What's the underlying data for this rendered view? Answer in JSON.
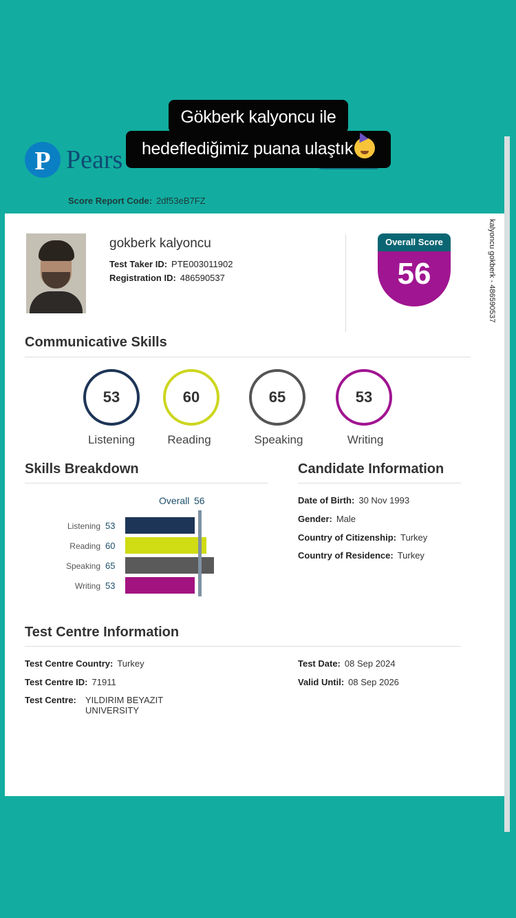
{
  "story": {
    "caption_line1": "Gökberk kalyoncu ile",
    "caption_line2": "hedeflediğimiz puana ulaştık"
  },
  "report": {
    "brand": "Pears",
    "score_report_code_label": "Score Report Code:",
    "score_report_code": "2df53eB7FZ",
    "side_text": "kalyoncu gokberk - 486590537"
  },
  "candidate": {
    "name": "gokberk kalyoncu",
    "test_taker_id_label": "Test Taker ID:",
    "test_taker_id": "PTE003011902",
    "registration_id_label": "Registration ID:",
    "registration_id": "486590537"
  },
  "overall": {
    "label": "Overall Score",
    "score": "56"
  },
  "communicative": {
    "title": "Communicative Skills",
    "skills": [
      {
        "name": "Listening",
        "score": "53",
        "color": "#1d3557"
      },
      {
        "name": "Reading",
        "score": "60",
        "color": "#ccd61f"
      },
      {
        "name": "Speaking",
        "score": "65",
        "color": "#555555"
      },
      {
        "name": "Writing",
        "score": "53",
        "color": "#a01591"
      }
    ]
  },
  "breakdown": {
    "title": "Skills Breakdown",
    "overall_label": "Overall",
    "overall_value": 56,
    "skills": [
      {
        "name": "Listening",
        "value": 53,
        "color": "#1d3557"
      },
      {
        "name": "Reading",
        "value": 60,
        "color": "#d0dc14"
      },
      {
        "name": "Speaking",
        "value": 65,
        "color": "#5a5a5a"
      },
      {
        "name": "Writing",
        "value": 53,
        "color": "#a3137f"
      }
    ]
  },
  "candidate_info": {
    "title": "Candidate Information",
    "dob_label": "Date of Birth:",
    "dob": "30 Nov 1993",
    "gender_label": "Gender:",
    "gender": "Male",
    "citizenship_label": "Country of Citizenship:",
    "citizenship": "Turkey",
    "residence_label": "Country of Residence:",
    "residence": "Turkey"
  },
  "test_centre": {
    "title": "Test Centre Information",
    "country_label": "Test Centre Country:",
    "country": "Turkey",
    "id_label": "Test Centre ID:",
    "id": "71911",
    "centre_label": "Test Centre:",
    "centre_line1": "YILDIRIM BEYAZIT",
    "centre_line2": "UNIVERSITY",
    "test_date_label": "Test Date:",
    "test_date": "08 Sep 2024",
    "valid_until_label": "Valid Until:",
    "valid_until": "08 Sep 2026"
  }
}
